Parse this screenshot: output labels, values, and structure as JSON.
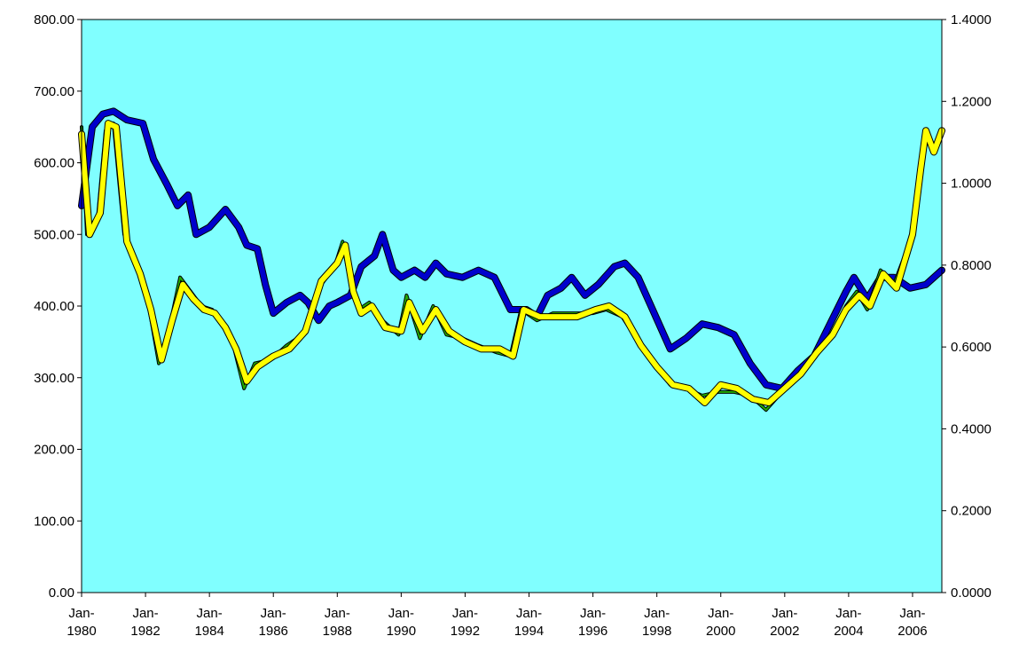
{
  "chart_data": {
    "type": "line",
    "title": "",
    "xlabel": "",
    "ylabel_left": "",
    "ylabel_right": "",
    "x_range": [
      "1980-01",
      "2006-12"
    ],
    "ylim_left": [
      0,
      800
    ],
    "ylim_right": [
      0,
      1.4
    ],
    "grid": false,
    "legend": "none",
    "plot_background": "#80ffff",
    "y_ticks_left": [
      "0.00",
      "100.00",
      "200.00",
      "300.00",
      "400.00",
      "500.00",
      "600.00",
      "700.00",
      "800.00"
    ],
    "y_ticks_right": [
      "0.0000",
      "0.2000",
      "0.4000",
      "0.6000",
      "0.8000",
      "1.0000",
      "1.2000",
      "1.4000"
    ],
    "x_ticks": [
      {
        "x": "1980-01",
        "label": "Jan-",
        "year": "1980"
      },
      {
        "x": "1982-01",
        "label": "Jan-",
        "year": "1982"
      },
      {
        "x": "1984-01",
        "label": "Jan-",
        "year": "1984"
      },
      {
        "x": "1986-01",
        "label": "Jan-",
        "year": "1986"
      },
      {
        "x": "1988-01",
        "label": "Jan-",
        "year": "1988"
      },
      {
        "x": "1990-01",
        "label": "Jan-",
        "year": "1990"
      },
      {
        "x": "1992-01",
        "label": "Jan-",
        "year": "1992"
      },
      {
        "x": "1994-01",
        "label": "Jan-",
        "year": "1994"
      },
      {
        "x": "1996-01",
        "label": "Jan-",
        "year": "1996"
      },
      {
        "x": "1998-01",
        "label": "Jan-",
        "year": "1998"
      },
      {
        "x": "2000-01",
        "label": "Jan-",
        "year": "2000"
      },
      {
        "x": "2002-01",
        "label": "Jan-",
        "year": "2002"
      },
      {
        "x": "2004-01",
        "label": "Jan-",
        "year": "2004"
      },
      {
        "x": "2006-01",
        "label": "Jan-",
        "year": "2006"
      }
    ],
    "series": [
      {
        "axis": "left",
        "color": "#0000cc",
        "width": 6,
        "points": [
          [
            "1980-01",
            540
          ],
          [
            "1980-05",
            650
          ],
          [
            "1980-09",
            668
          ],
          [
            "1981-01",
            672
          ],
          [
            "1981-06",
            660
          ],
          [
            "1981-12",
            655
          ],
          [
            "1982-04",
            605
          ],
          [
            "1982-09",
            570
          ],
          [
            "1983-01",
            540
          ],
          [
            "1983-05",
            555
          ],
          [
            "1983-08",
            500
          ],
          [
            "1984-01",
            510
          ],
          [
            "1984-07",
            535
          ],
          [
            "1984-12",
            510
          ],
          [
            "1985-03",
            485
          ],
          [
            "1985-07",
            480
          ],
          [
            "1985-10",
            430
          ],
          [
            "1986-01",
            390
          ],
          [
            "1986-06",
            405
          ],
          [
            "1986-11",
            415
          ],
          [
            "1987-02",
            405
          ],
          [
            "1987-06",
            380
          ],
          [
            "1987-10",
            400
          ],
          [
            "1988-01",
            405
          ],
          [
            "1988-06",
            415
          ],
          [
            "1988-10",
            455
          ],
          [
            "1989-03",
            470
          ],
          [
            "1989-06",
            500
          ],
          [
            "1989-10",
            450
          ],
          [
            "1990-01",
            440
          ],
          [
            "1990-06",
            450
          ],
          [
            "1990-10",
            440
          ],
          [
            "1991-02",
            460
          ],
          [
            "1991-06",
            445
          ],
          [
            "1991-12",
            440
          ],
          [
            "1992-06",
            450
          ],
          [
            "1992-12",
            440
          ],
          [
            "1993-06",
            395
          ],
          [
            "1993-12",
            395
          ],
          [
            "1994-04",
            385
          ],
          [
            "1994-08",
            415
          ],
          [
            "1995-01",
            425
          ],
          [
            "1995-05",
            440
          ],
          [
            "1995-10",
            415
          ],
          [
            "1996-03",
            430
          ],
          [
            "1996-09",
            455
          ],
          [
            "1997-01",
            460
          ],
          [
            "1997-06",
            440
          ],
          [
            "1997-12",
            390
          ],
          [
            "1998-06",
            340
          ],
          [
            "1998-12",
            355
          ],
          [
            "1999-06",
            375
          ],
          [
            "1999-12",
            370
          ],
          [
            "2000-06",
            360
          ],
          [
            "2000-12",
            320
          ],
          [
            "2001-06",
            290
          ],
          [
            "2001-12",
            285
          ],
          [
            "2002-06",
            310
          ],
          [
            "2002-12",
            330
          ],
          [
            "2003-06",
            375
          ],
          [
            "2003-12",
            420
          ],
          [
            "2004-03",
            440
          ],
          [
            "2004-08",
            410
          ],
          [
            "2005-01",
            440
          ],
          [
            "2005-06",
            440
          ],
          [
            "2005-12",
            425
          ],
          [
            "2006-06",
            430
          ],
          [
            "2006-12",
            450
          ]
        ]
      },
      {
        "axis": "left",
        "color": "#22aa00",
        "width": 2,
        "points": [
          [
            "1980-01",
            650
          ],
          [
            "1980-03",
            500
          ],
          [
            "1980-07",
            520
          ],
          [
            "1980-10",
            645
          ],
          [
            "1981-01",
            655
          ],
          [
            "1981-05",
            500
          ],
          [
            "1981-10",
            450
          ],
          [
            "1982-02",
            405
          ],
          [
            "1982-06",
            320
          ],
          [
            "1982-10",
            370
          ],
          [
            "1983-02",
            440
          ],
          [
            "1983-06",
            420
          ],
          [
            "1983-10",
            400
          ],
          [
            "1984-02",
            395
          ],
          [
            "1984-06",
            375
          ],
          [
            "1984-10",
            345
          ],
          [
            "1985-02",
            285
          ],
          [
            "1985-06",
            320
          ],
          [
            "1985-12",
            325
          ],
          [
            "1986-06",
            345
          ],
          [
            "1986-12",
            360
          ],
          [
            "1987-06",
            425
          ],
          [
            "1987-12",
            455
          ],
          [
            "1988-03",
            490
          ],
          [
            "1988-06",
            430
          ],
          [
            "1988-09",
            395
          ],
          [
            "1989-01",
            405
          ],
          [
            "1989-06",
            380
          ],
          [
            "1989-12",
            360
          ],
          [
            "1990-03",
            415
          ],
          [
            "1990-08",
            355
          ],
          [
            "1991-01",
            400
          ],
          [
            "1991-06",
            360
          ],
          [
            "1991-12",
            355
          ],
          [
            "1992-06",
            345
          ],
          [
            "1993-01",
            335
          ],
          [
            "1993-06",
            330
          ],
          [
            "1993-10",
            395
          ],
          [
            "1994-04",
            380
          ],
          [
            "1994-10",
            390
          ],
          [
            "1995-06",
            390
          ],
          [
            "1996-01",
            390
          ],
          [
            "1996-06",
            395
          ],
          [
            "1996-12",
            385
          ],
          [
            "1997-06",
            350
          ],
          [
            "1997-12",
            320
          ],
          [
            "1998-06",
            290
          ],
          [
            "1998-12",
            285
          ],
          [
            "1999-06",
            275
          ],
          [
            "1999-12",
            280
          ],
          [
            "2000-06",
            280
          ],
          [
            "2000-12",
            275
          ],
          [
            "2001-06",
            255
          ],
          [
            "2001-12",
            280
          ],
          [
            "2002-06",
            300
          ],
          [
            "2002-12",
            330
          ],
          [
            "2003-06",
            355
          ],
          [
            "2003-12",
            400
          ],
          [
            "2004-04",
            420
          ],
          [
            "2004-08",
            395
          ],
          [
            "2005-01",
            450
          ],
          [
            "2005-06",
            430
          ],
          [
            "2005-12",
            490
          ],
          [
            "2006-03",
            560
          ],
          [
            "2006-06",
            640
          ],
          [
            "2006-09",
            615
          ],
          [
            "2006-12",
            640
          ]
        ]
      },
      {
        "axis": "left",
        "color": "#ffff00",
        "width": 6,
        "points": [
          [
            "1980-01",
            640
          ],
          [
            "1980-04",
            500
          ],
          [
            "1980-08",
            530
          ],
          [
            "1980-11",
            655
          ],
          [
            "1981-02",
            650
          ],
          [
            "1981-06",
            490
          ],
          [
            "1981-11",
            445
          ],
          [
            "1982-03",
            395
          ],
          [
            "1982-07",
            325
          ],
          [
            "1982-11",
            380
          ],
          [
            "1983-03",
            430
          ],
          [
            "1983-07",
            410
          ],
          [
            "1983-11",
            395
          ],
          [
            "1984-03",
            390
          ],
          [
            "1984-07",
            370
          ],
          [
            "1984-11",
            340
          ],
          [
            "1985-03",
            295
          ],
          [
            "1985-07",
            315
          ],
          [
            "1986-01",
            330
          ],
          [
            "1986-07",
            340
          ],
          [
            "1987-01",
            365
          ],
          [
            "1987-07",
            435
          ],
          [
            "1988-01",
            460
          ],
          [
            "1988-04",
            485
          ],
          [
            "1988-07",
            420
          ],
          [
            "1988-10",
            390
          ],
          [
            "1989-02",
            400
          ],
          [
            "1989-07",
            370
          ],
          [
            "1990-01",
            365
          ],
          [
            "1990-04",
            405
          ],
          [
            "1990-09",
            365
          ],
          [
            "1991-02",
            395
          ],
          [
            "1991-07",
            365
          ],
          [
            "1992-01",
            350
          ],
          [
            "1992-07",
            340
          ],
          [
            "1993-02",
            340
          ],
          [
            "1993-07",
            330
          ],
          [
            "1993-11",
            395
          ],
          [
            "1994-05",
            385
          ],
          [
            "1994-11",
            385
          ],
          [
            "1995-07",
            385
          ],
          [
            "1996-02",
            395
          ],
          [
            "1996-07",
            400
          ],
          [
            "1997-01",
            385
          ],
          [
            "1997-07",
            345
          ],
          [
            "1998-01",
            315
          ],
          [
            "1998-07",
            290
          ],
          [
            "1999-01",
            285
          ],
          [
            "1999-07",
            265
          ],
          [
            "2000-01",
            290
          ],
          [
            "2000-07",
            285
          ],
          [
            "2001-01",
            270
          ],
          [
            "2001-07",
            265
          ],
          [
            "2002-01",
            285
          ],
          [
            "2002-07",
            305
          ],
          [
            "2003-01",
            335
          ],
          [
            "2003-07",
            360
          ],
          [
            "2003-12",
            395
          ],
          [
            "2004-05",
            415
          ],
          [
            "2004-09",
            400
          ],
          [
            "2005-02",
            445
          ],
          [
            "2005-07",
            425
          ],
          [
            "2006-01",
            500
          ],
          [
            "2006-04",
            590
          ],
          [
            "2006-06",
            645
          ],
          [
            "2006-09",
            615
          ],
          [
            "2006-12",
            645
          ]
        ]
      }
    ]
  }
}
